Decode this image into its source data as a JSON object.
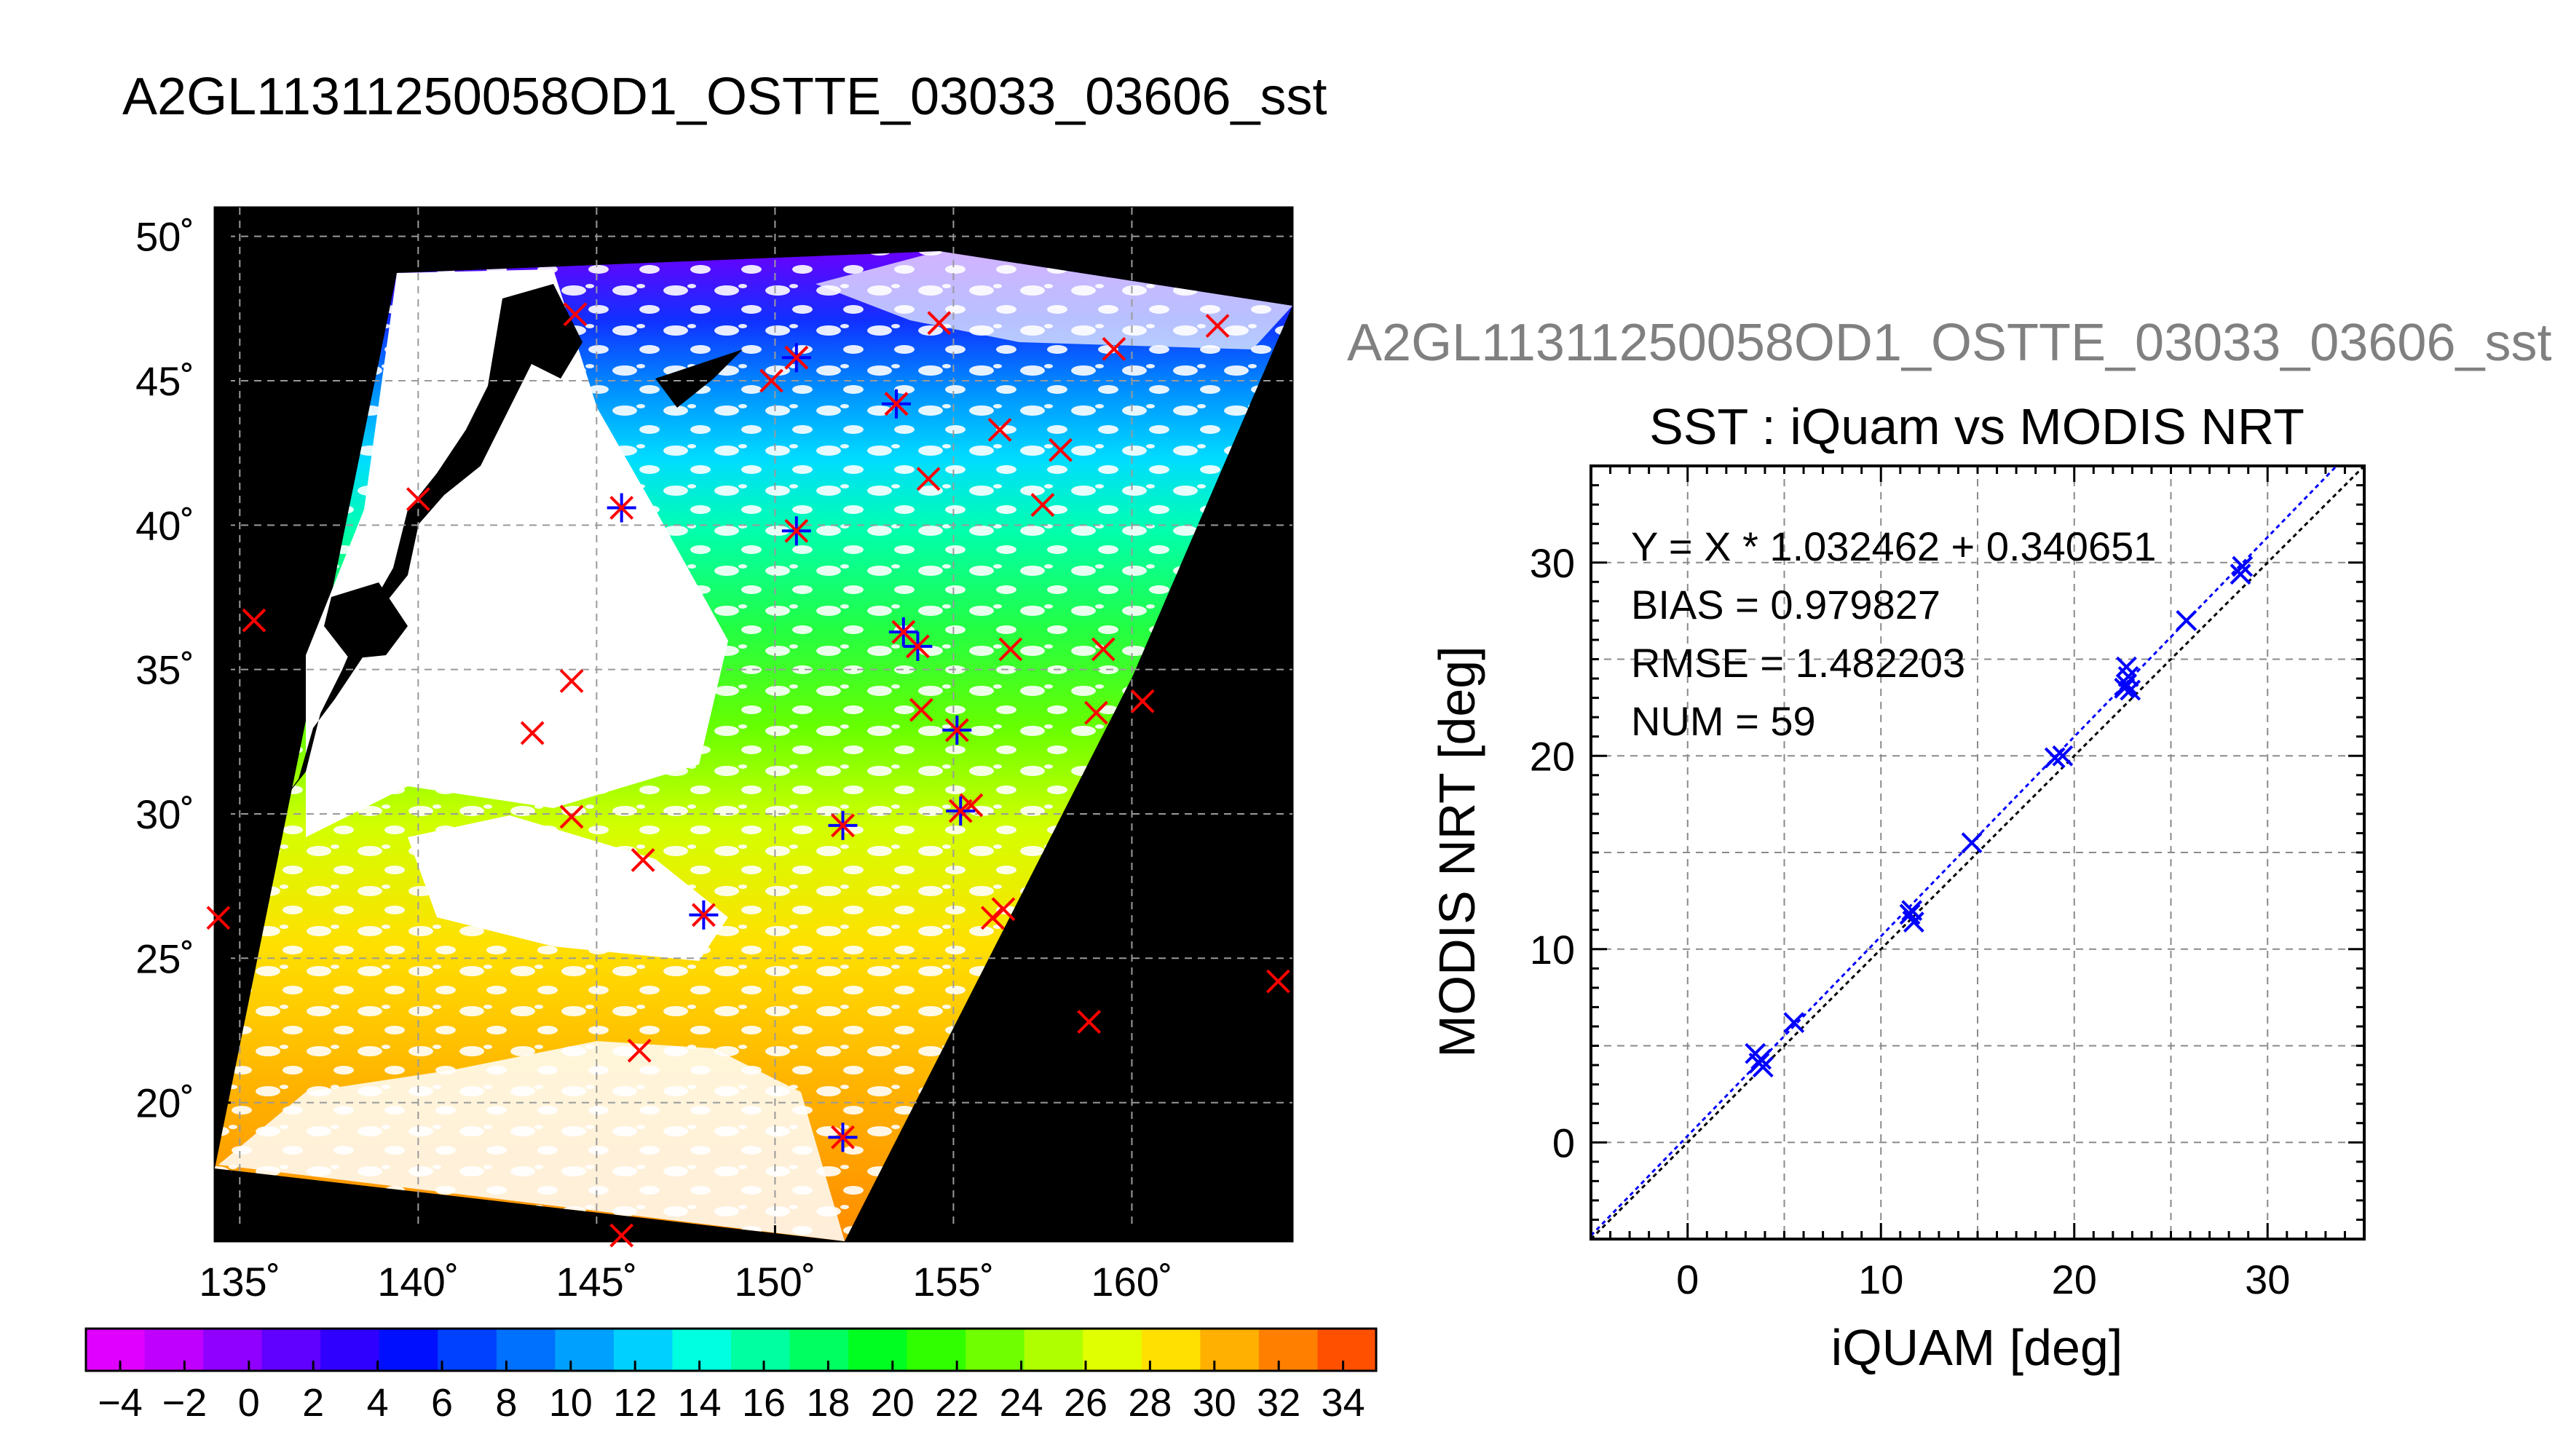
{
  "main_title": "A2GL11311250058OD1_OSTTE_03033_03606_sst",
  "sub_title": "A2GL11311250058OD1_OSTTE_03033_03606_sst",
  "map": {
    "lat_labels": [
      "50˚",
      "45˚",
      "40˚",
      "35˚",
      "30˚",
      "25˚",
      "20˚"
    ],
    "lon_labels": [
      "135˚",
      "140˚",
      "145˚",
      "150˚",
      "155˚",
      "160˚"
    ],
    "colorbar_labels": [
      "−4",
      "−2",
      "0",
      "2",
      "4",
      "6",
      "8",
      "10",
      "12",
      "14",
      "16",
      "18",
      "20",
      "22",
      "24",
      "26",
      "28",
      "30",
      "32",
      "34"
    ]
  },
  "scatter_text": {
    "title": "SST : iQuam vs MODIS NRT",
    "xlabel": "iQUAM [deg]",
    "ylabel": "MODIS NRT [deg]",
    "x_ticks": [
      "0",
      "10",
      "20",
      "30"
    ],
    "y_ticks": [
      "0",
      "10",
      "20",
      "30"
    ],
    "stat_fit": "Y = X * 1.032462 + 0.340651",
    "stat_bias": "BIAS = 0.979827",
    "stat_rmse": "RMSE = 1.482203",
    "stat_num": "NUM = 59"
  },
  "chart_data": [
    {
      "type": "heatmap",
      "xlim": [
        134.3,
        164.5
      ],
      "ylim": [
        15.2,
        51.0
      ],
      "x_ticks": [
        135,
        140,
        145,
        150,
        155,
        160
      ],
      "y_ticks": [
        20,
        25,
        30,
        35,
        40,
        45,
        50
      ],
      "colorbar_range": [
        -5,
        35
      ],
      "grid": true,
      "colors": {
        "background": "#000000",
        "cloud": "#ffffff",
        "match": "#ff0000",
        "matched_used": "#0000ff"
      },
      "red_matchups": [
        [
          144.4,
          47.3
        ],
        [
          150.6,
          45.8
        ],
        [
          154.6,
          47.0
        ],
        [
          159.5,
          46.1
        ],
        [
          162.4,
          46.9
        ],
        [
          149.9,
          45.0
        ],
        [
          153.4,
          44.2
        ],
        [
          156.3,
          43.3
        ],
        [
          158.0,
          42.6
        ],
        [
          154.3,
          41.6
        ],
        [
          157.5,
          40.7
        ],
        [
          140.0,
          40.9
        ],
        [
          135.4,
          36.7
        ],
        [
          144.3,
          34.6
        ],
        [
          143.2,
          32.8
        ],
        [
          154.1,
          33.6
        ],
        [
          156.6,
          35.7
        ],
        [
          159.2,
          35.7
        ],
        [
          159.0,
          33.5
        ],
        [
          160.3,
          33.9
        ],
        [
          144.3,
          29.9
        ],
        [
          146.3,
          28.4
        ],
        [
          155.5,
          30.3
        ],
        [
          156.1,
          26.4
        ],
        [
          156.4,
          26.7
        ],
        [
          134.4,
          26.4
        ],
        [
          158.8,
          22.8
        ],
        [
          146.2,
          21.8
        ],
        [
          145.7,
          15.4
        ],
        [
          164.1,
          24.2
        ]
      ],
      "blue_matchups": [
        [
          150.6,
          45.8
        ],
        [
          153.4,
          44.2
        ],
        [
          145.7,
          40.6
        ],
        [
          150.6,
          39.8
        ],
        [
          153.6,
          36.3
        ],
        [
          154.0,
          35.8
        ],
        [
          155.1,
          32.9
        ],
        [
          151.9,
          29.6
        ],
        [
          155.2,
          30.1
        ],
        [
          148.0,
          26.5
        ],
        [
          151.9,
          18.8
        ]
      ]
    },
    {
      "type": "scatter",
      "title": "SST : iQuam vs MODIS NRT",
      "xlabel": "iQUAM [deg]",
      "ylabel": "MODIS NRT [deg]",
      "xlim": [
        -5,
        35
      ],
      "ylim": [
        -5,
        35
      ],
      "x_ticks": [
        0,
        10,
        20,
        30
      ],
      "y_ticks": [
        0,
        10,
        20,
        30
      ],
      "grid": true,
      "fit": {
        "slope": 1.032462,
        "intercept": 0.340651
      },
      "points": [
        [
          3.5,
          4.6
        ],
        [
          3.7,
          4.1
        ],
        [
          3.9,
          3.9
        ],
        [
          3.8,
          4.3
        ],
        [
          5.5,
          6.2
        ],
        [
          11.6,
          12.0
        ],
        [
          11.7,
          11.4
        ],
        [
          11.5,
          11.8
        ],
        [
          14.7,
          15.5
        ],
        [
          19.0,
          19.9
        ],
        [
          19.4,
          20.0
        ],
        [
          22.7,
          24.6
        ],
        [
          22.8,
          24.1
        ],
        [
          22.7,
          23.7
        ],
        [
          22.9,
          23.4
        ],
        [
          22.6,
          23.5
        ],
        [
          25.8,
          27.0
        ],
        [
          28.6,
          29.4
        ],
        [
          28.7,
          29.8
        ]
      ]
    }
  ]
}
